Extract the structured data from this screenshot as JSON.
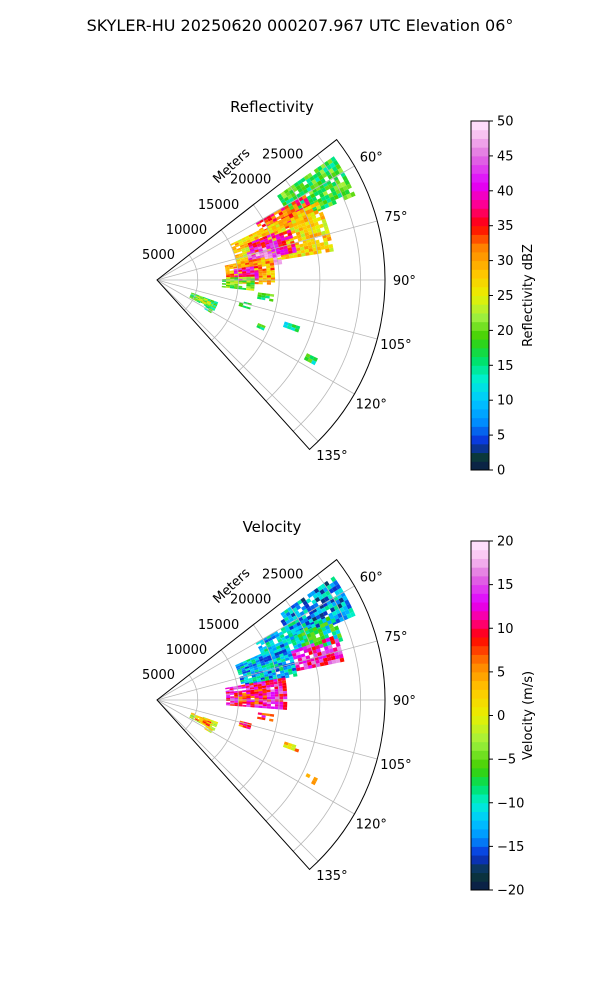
{
  "figure": {
    "title": "SKYLER-HU  20250620  000207.967 UTC Elevation 06°"
  },
  "chart_data": [
    {
      "type": "heatmap",
      "projection": "polar-sector",
      "title": "Reflectivity",
      "range_label": "Meters",
      "range_ticks": [
        5000,
        10000,
        15000,
        20000,
        25000
      ],
      "range_max_m": 28000,
      "azimuth_range_deg": [
        52,
        138
      ],
      "azimuth_ticks": [
        "60°",
        "75°",
        "90°",
        "105°",
        "120°",
        "135°"
      ],
      "azimuth_tick_values": [
        60,
        75,
        90,
        105,
        120,
        135
      ],
      "grid": true,
      "colorbar": {
        "label": "Reflectivity dBZ",
        "min": 0,
        "max": 50,
        "ticks": [
          0,
          5,
          10,
          15,
          20,
          25,
          30,
          35,
          40,
          45,
          50
        ],
        "stops": [
          {
            "v": 0,
            "c": "#0b1a4a"
          },
          {
            "v": 2,
            "c": "#0b3a3a"
          },
          {
            "v": 4,
            "c": "#0a2fd8"
          },
          {
            "v": 7,
            "c": "#0090ff"
          },
          {
            "v": 10,
            "c": "#00c8ff"
          },
          {
            "v": 13,
            "c": "#00f0d0"
          },
          {
            "v": 16,
            "c": "#00e060"
          },
          {
            "v": 19,
            "c": "#40d000"
          },
          {
            "v": 22,
            "c": "#a0f040"
          },
          {
            "v": 25,
            "c": "#e8f000"
          },
          {
            "v": 28,
            "c": "#ffc800"
          },
          {
            "v": 32,
            "c": "#ff8000"
          },
          {
            "v": 35,
            "c": "#ff0000"
          },
          {
            "v": 38,
            "c": "#ff0090"
          },
          {
            "v": 41,
            "c": "#e000ff"
          },
          {
            "v": 45,
            "c": "#e070e0"
          },
          {
            "v": 48,
            "c": "#f8c0f0"
          },
          {
            "v": 50,
            "c": "#ffe8ff"
          }
        ]
      },
      "echo_regions": [
        {
          "az_min": 55,
          "az_max": 67,
          "r_min": 18000,
          "r_max": 26500,
          "value": 18
        },
        {
          "az_min": 60,
          "az_max": 68,
          "r_min": 14000,
          "r_max": 21000,
          "value": 34
        },
        {
          "az_min": 64,
          "az_max": 80,
          "r_min": 10000,
          "r_max": 22000,
          "value": 27
        },
        {
          "az_min": 68,
          "az_max": 78,
          "r_min": 12000,
          "r_max": 17500,
          "value": 38
        },
        {
          "az_min": 72,
          "az_max": 82,
          "r_min": 11500,
          "r_max": 15500,
          "value": 44
        },
        {
          "az_min": 78,
          "az_max": 92,
          "r_min": 8500,
          "r_max": 14500,
          "value": 30
        },
        {
          "az_min": 82,
          "az_max": 90,
          "r_min": 9500,
          "r_max": 12500,
          "value": 40
        },
        {
          "az_min": 88,
          "az_max": 96,
          "r_min": 8000,
          "r_max": 12000,
          "value": 20
        },
        {
          "az_min": 110,
          "az_max": 118,
          "r_min": 4500,
          "r_max": 8000,
          "value": 18
        },
        {
          "az_min": 111,
          "az_max": 116,
          "r_min": 5200,
          "r_max": 6800,
          "value": 24
        },
        {
          "az_min": 118,
          "az_max": 121,
          "r_min": 6800,
          "r_max": 7800,
          "value": 17
        },
        {
          "az_min": 97,
          "az_max": 100,
          "r_min": 12500,
          "r_max": 14500,
          "value": 17
        },
        {
          "az_min": 104,
          "az_max": 107,
          "r_min": 10500,
          "r_max": 12000,
          "value": 18
        },
        {
          "az_min": 108,
          "az_max": 110,
          "r_min": 16500,
          "r_max": 18500,
          "value": 15
        },
        {
          "az_min": 113,
          "az_max": 115,
          "r_min": 13500,
          "r_max": 14500,
          "value": 18
        },
        {
          "az_min": 116,
          "az_max": 118,
          "r_min": 20500,
          "r_max": 22000,
          "value": 16
        }
      ]
    },
    {
      "type": "heatmap",
      "projection": "polar-sector",
      "title": "Velocity",
      "range_label": "Meters",
      "range_ticks": [
        5000,
        10000,
        15000,
        20000,
        25000
      ],
      "range_max_m": 28000,
      "azimuth_range_deg": [
        52,
        138
      ],
      "azimuth_ticks": [
        "60°",
        "75°",
        "90°",
        "105°",
        "120°",
        "135°"
      ],
      "azimuth_tick_values": [
        60,
        75,
        90,
        105,
        120,
        135
      ],
      "grid": true,
      "colorbar": {
        "label": "Velocity (m/s)",
        "min": -20,
        "max": 20,
        "ticks": [
          -20,
          -15,
          -10,
          -5,
          0,
          5,
          10,
          15,
          20
        ],
        "stops": [
          {
            "v": -20,
            "c": "#0b1a4a"
          },
          {
            "v": -18,
            "c": "#0b3a3a"
          },
          {
            "v": -16,
            "c": "#0a2fd8"
          },
          {
            "v": -14,
            "c": "#0090ff"
          },
          {
            "v": -12,
            "c": "#00c8ff"
          },
          {
            "v": -10,
            "c": "#00f0d0"
          },
          {
            "v": -8,
            "c": "#00e060"
          },
          {
            "v": -6,
            "c": "#40d000"
          },
          {
            "v": -3,
            "c": "#a0f040"
          },
          {
            "v": 0,
            "c": "#e8f000"
          },
          {
            "v": 3,
            "c": "#ffc800"
          },
          {
            "v": 6,
            "c": "#ff8000"
          },
          {
            "v": 9,
            "c": "#ff0000"
          },
          {
            "v": 11,
            "c": "#ff0090"
          },
          {
            "v": 13,
            "c": "#e000ff"
          },
          {
            "v": 16,
            "c": "#e070e0"
          },
          {
            "v": 18,
            "c": "#f8c0f0"
          },
          {
            "v": 20,
            "c": "#ffe8ff"
          }
        ]
      },
      "echo_regions": [
        {
          "az_min": 55,
          "az_max": 67,
          "r_min": 18000,
          "r_max": 26500,
          "value": -13
        },
        {
          "az_min": 60,
          "az_max": 70,
          "r_min": 14000,
          "r_max": 21000,
          "value": -12
        },
        {
          "az_min": 64,
          "az_max": 72,
          "r_min": 19000,
          "r_max": 24000,
          "value": -9
        },
        {
          "az_min": 70,
          "az_max": 78,
          "r_min": 17500,
          "r_max": 23500,
          "value": 13
        },
        {
          "az_min": 66,
          "az_max": 80,
          "r_min": 10500,
          "r_max": 17500,
          "value": -12
        },
        {
          "az_min": 80,
          "az_max": 94,
          "r_min": 8500,
          "r_max": 16000,
          "value": 12
        },
        {
          "az_min": 84,
          "az_max": 92,
          "r_min": 10000,
          "r_max": 13500,
          "value": 9
        },
        {
          "az_min": 110,
          "az_max": 118,
          "r_min": 4500,
          "r_max": 8000,
          "value": 0
        },
        {
          "az_min": 111,
          "az_max": 116,
          "r_min": 5200,
          "r_max": 6800,
          "value": 6
        },
        {
          "az_min": 118,
          "az_max": 121,
          "r_min": 6800,
          "r_max": 7800,
          "value": 2
        },
        {
          "az_min": 97,
          "az_max": 100,
          "r_min": 12500,
          "r_max": 14500,
          "value": 9
        },
        {
          "az_min": 104,
          "az_max": 107,
          "r_min": 10500,
          "r_max": 12000,
          "value": 7
        },
        {
          "az_min": 108,
          "az_max": 110,
          "r_min": 16500,
          "r_max": 18500,
          "value": 3
        },
        {
          "az_min": 116,
          "az_max": 118,
          "r_min": 20500,
          "r_max": 22000,
          "value": 1
        }
      ]
    }
  ]
}
